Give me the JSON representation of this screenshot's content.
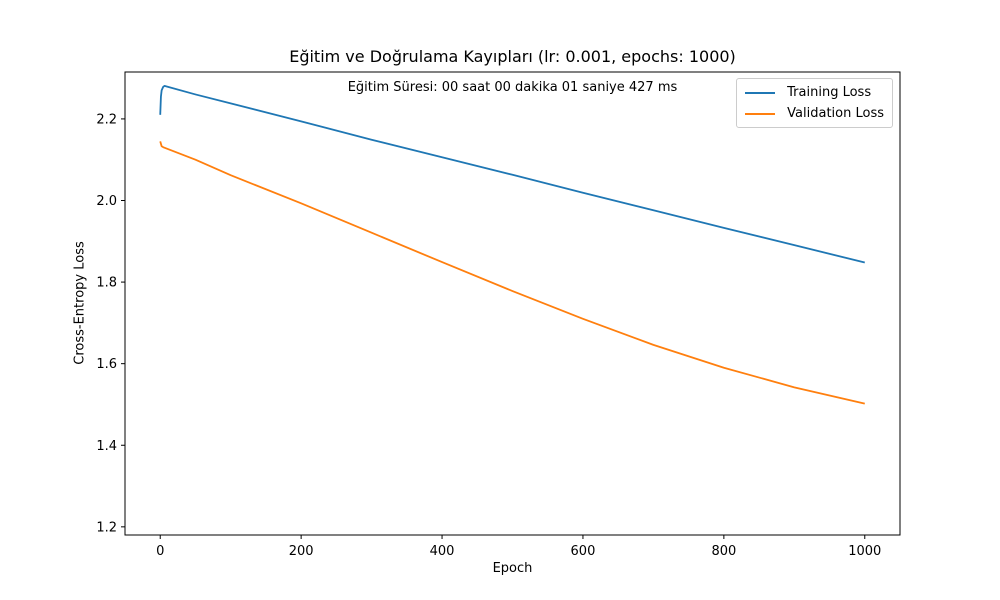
{
  "chart_data": {
    "type": "line",
    "title": "Eğitim ve Doğrulama Kayıpları (lr: 0.001, epochs: 1000)",
    "annotation": "Eğitim Süresi: 00 saat 00 dakika 01 saniye 427 ms",
    "xlabel": "Epoch",
    "ylabel": "Cross-Entropy Loss",
    "xlim": [
      -50,
      1050
    ],
    "ylim": [
      1.18,
      2.315
    ],
    "xticks": [
      0,
      200,
      400,
      600,
      800,
      1000
    ],
    "yticks": [
      1.2,
      1.4,
      1.6,
      1.8,
      2.0,
      2.2
    ],
    "grid": false,
    "legend_position": "top-right",
    "series": [
      {
        "name": "Training Loss",
        "color": "#1f77b4",
        "points": [
          [
            0,
            2.21
          ],
          [
            1,
            2.255
          ],
          [
            2,
            2.27
          ],
          [
            4,
            2.278
          ],
          [
            6,
            2.281
          ],
          [
            50,
            2.26
          ],
          [
            100,
            2.238
          ],
          [
            200,
            2.194
          ],
          [
            300,
            2.149
          ],
          [
            400,
            2.106
          ],
          [
            500,
            2.063
          ],
          [
            600,
            2.019
          ],
          [
            700,
            1.976
          ],
          [
            800,
            1.933
          ],
          [
            900,
            1.8905
          ],
          [
            1000,
            1.848
          ]
        ]
      },
      {
        "name": "Validation Loss",
        "color": "#ff7f0e",
        "points": [
          [
            0,
            2.145
          ],
          [
            2,
            2.133
          ],
          [
            5,
            2.13
          ],
          [
            50,
            2.1
          ],
          [
            100,
            2.062
          ],
          [
            200,
            1.993
          ],
          [
            300,
            1.921
          ],
          [
            400,
            1.849
          ],
          [
            500,
            1.778
          ],
          [
            600,
            1.71
          ],
          [
            700,
            1.646
          ],
          [
            800,
            1.59
          ],
          [
            900,
            1.542
          ],
          [
            1000,
            1.502
          ]
        ]
      }
    ]
  }
}
